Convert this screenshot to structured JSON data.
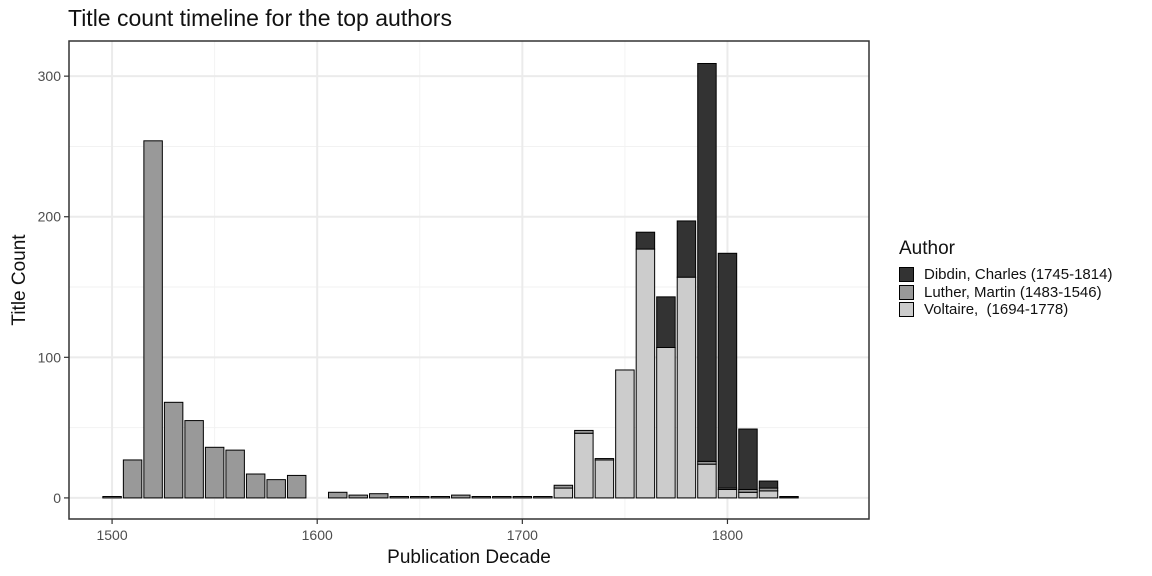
{
  "chart_data": {
    "type": "bar",
    "stacked": true,
    "title": "Title count timeline for the top authors",
    "xlabel": "Publication Decade",
    "ylabel": "Title Count",
    "xlim": [
      1479,
      1869
    ],
    "ylim": [
      -15,
      325
    ],
    "x_ticks": [
      1500,
      1600,
      1700,
      1800
    ],
    "y_ticks": [
      0,
      100,
      200,
      300
    ],
    "grid": true,
    "legend_title": "Author",
    "legend_position": "right",
    "x": [
      1500,
      1510,
      1520,
      1530,
      1540,
      1550,
      1560,
      1570,
      1580,
      1590,
      1610,
      1620,
      1630,
      1640,
      1650,
      1660,
      1670,
      1680,
      1690,
      1700,
      1710,
      1720,
      1730,
      1740,
      1750,
      1760,
      1770,
      1780,
      1790,
      1800,
      1810,
      1820,
      1830
    ],
    "series": [
      {
        "name": "Voltaire,  (1694-1778)",
        "color": "#cccccc",
        "values": [
          0,
          0,
          0,
          0,
          0,
          0,
          0,
          0,
          0,
          0,
          0,
          0,
          0,
          0,
          0,
          0,
          0,
          0,
          0,
          0,
          0,
          7,
          46,
          27,
          91,
          177,
          107,
          157,
          24,
          6,
          4,
          5,
          0
        ]
      },
      {
        "name": "Luther, Martin (1483-1546)",
        "color": "#999999",
        "values": [
          1,
          27,
          254,
          68,
          55,
          36,
          34,
          17,
          13,
          16,
          4,
          2,
          3,
          1,
          1,
          1,
          2,
          1,
          1,
          1,
          1,
          2,
          2,
          1,
          0,
          0,
          0,
          0,
          2,
          1,
          2,
          2,
          0
        ]
      },
      {
        "name": "Dibdin, Charles (1745-1814)",
        "color": "#333333",
        "values": [
          0,
          0,
          0,
          0,
          0,
          0,
          0,
          0,
          0,
          0,
          0,
          0,
          0,
          0,
          0,
          0,
          0,
          0,
          0,
          0,
          0,
          0,
          0,
          0,
          0,
          12,
          36,
          40,
          283,
          167,
          43,
          5,
          1
        ]
      }
    ]
  }
}
